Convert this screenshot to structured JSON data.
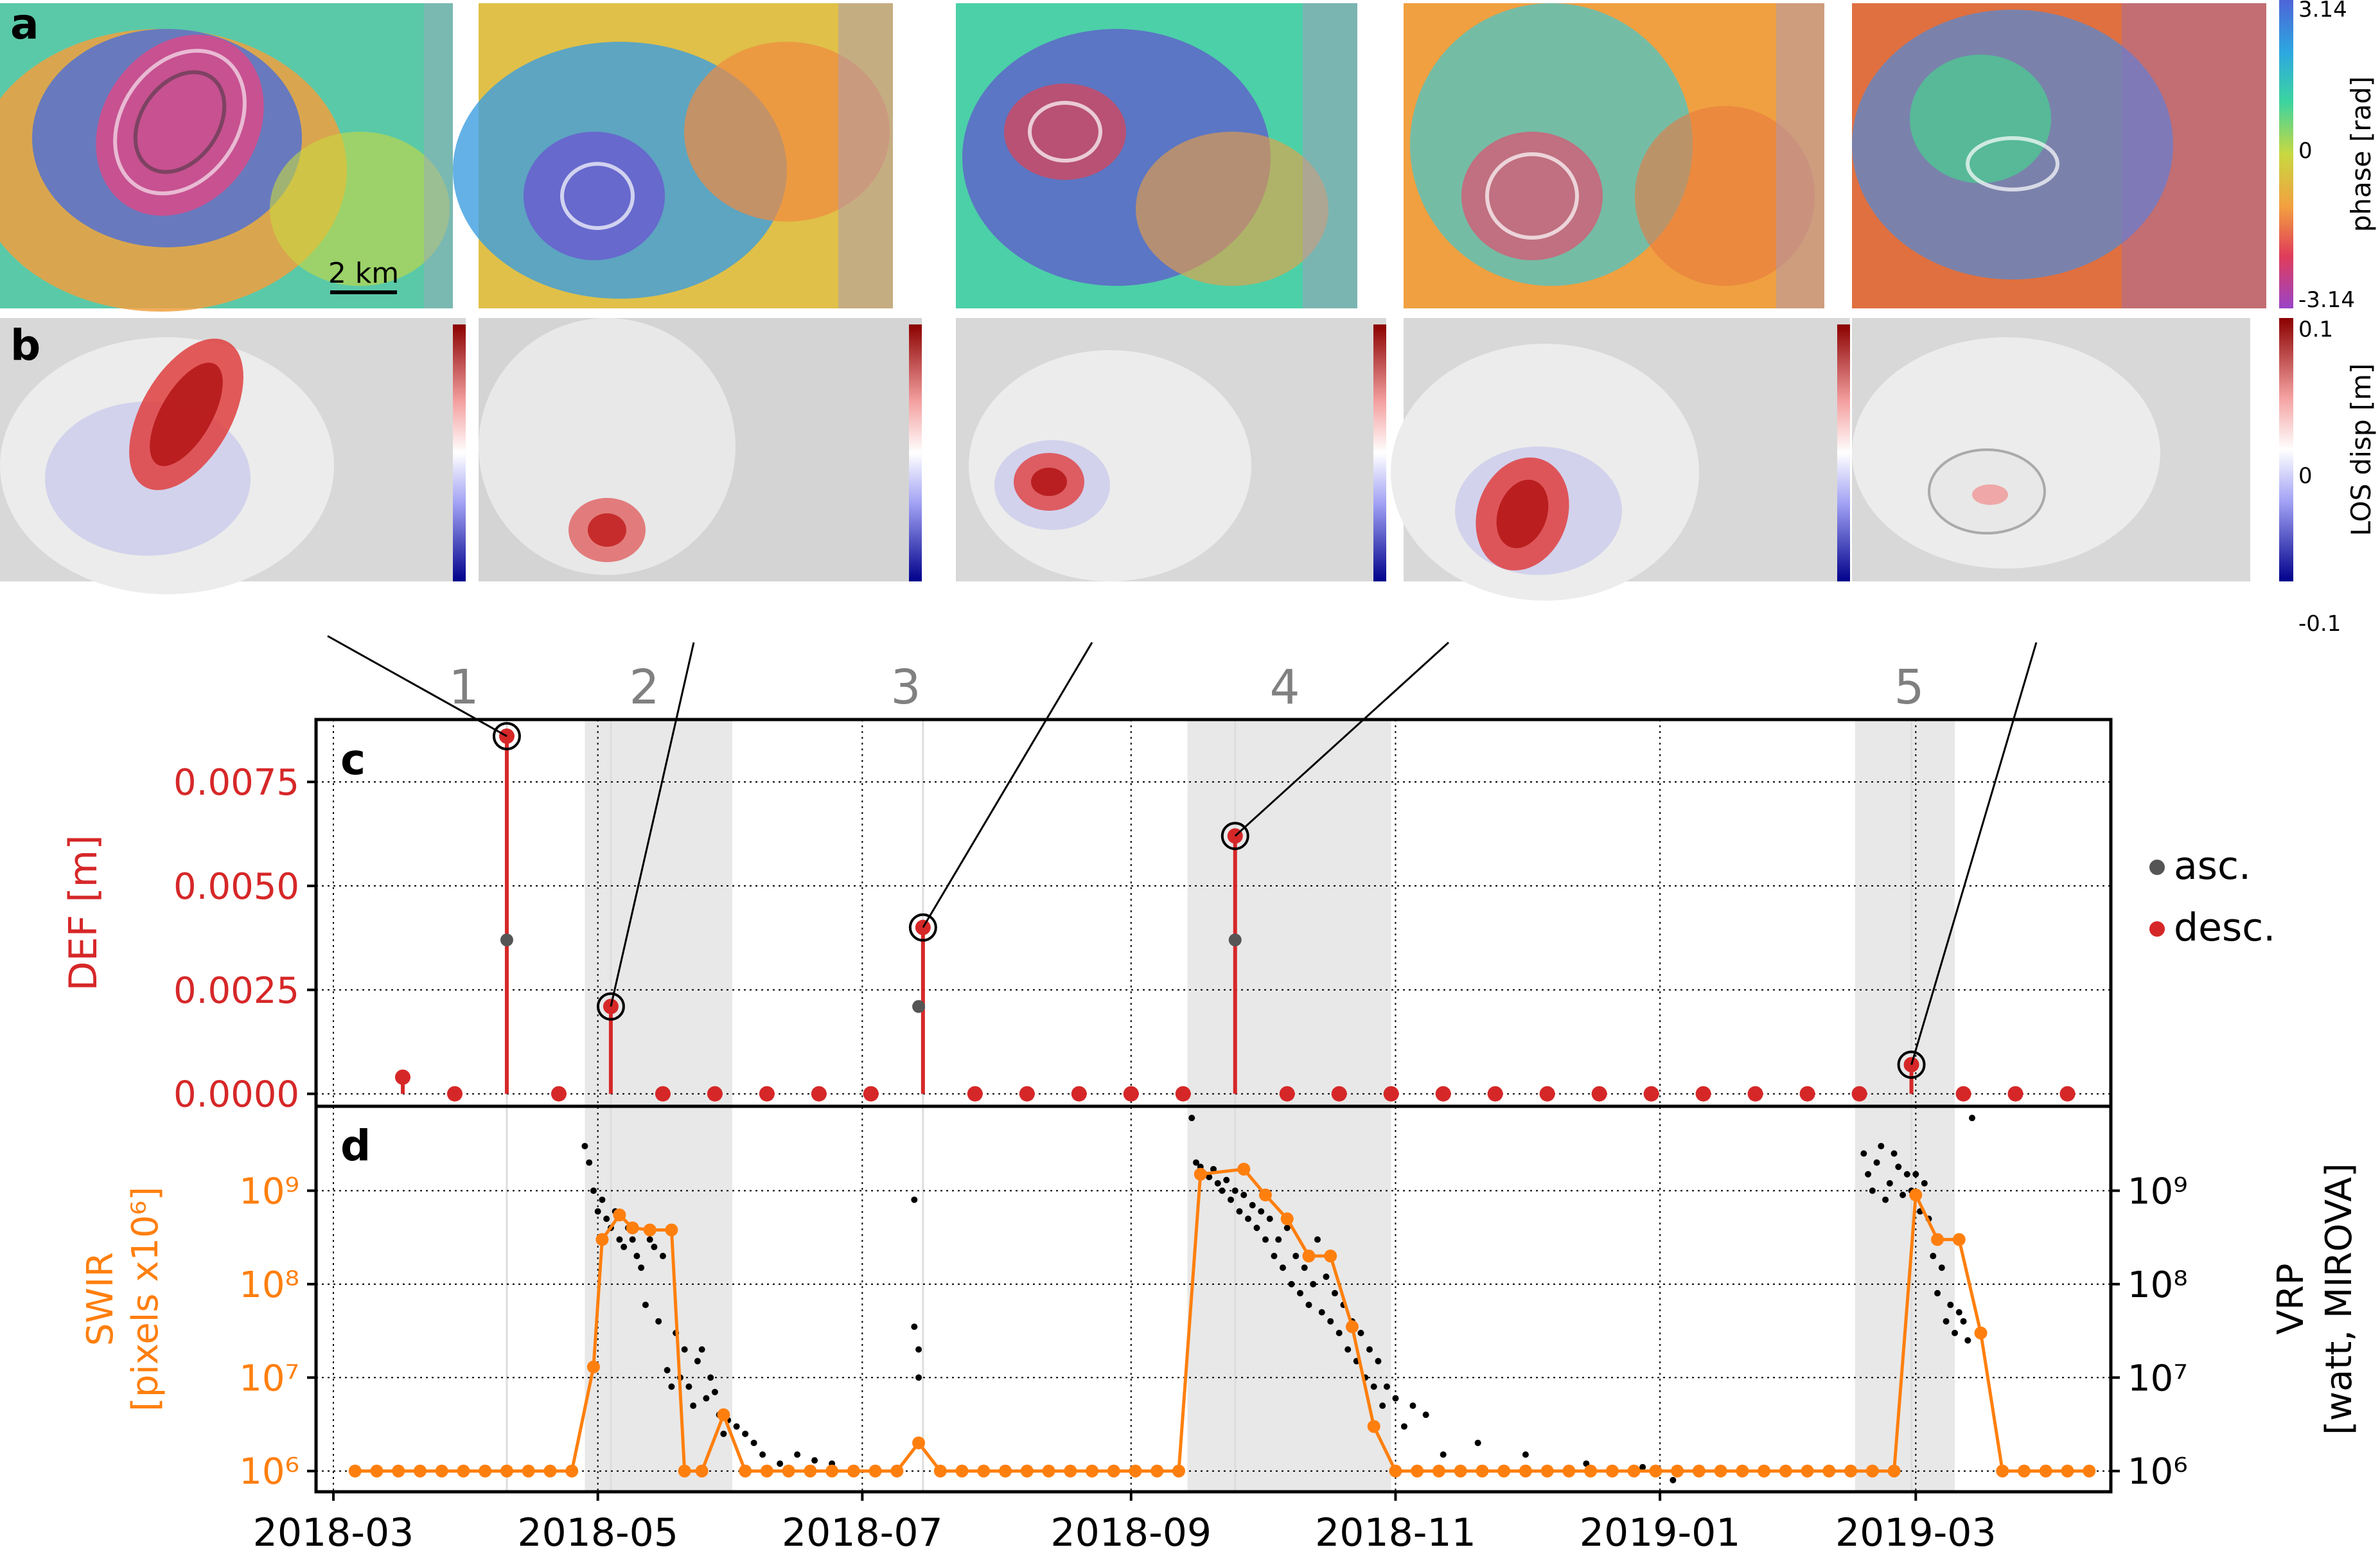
{
  "panel_labels": {
    "a": "a",
    "b": "b",
    "c": "c",
    "d": "d"
  },
  "scale_bar": "2 km",
  "colorbar_a": {
    "top": "3.14",
    "mid": "0",
    "bottom": "-3.14",
    "label": "phase [rad]"
  },
  "colorbar_b": {
    "top": "0.1",
    "mid": "0",
    "bottom": "-0.1",
    "label": "LOS disp [m]"
  },
  "event_numbers": [
    "1",
    "2",
    "3",
    "4",
    "5"
  ],
  "colors": {
    "desc": "#d62728",
    "asc": "#555555",
    "swir": "#ff7f0e",
    "vrp": "#000000",
    "shade": "#e8e8e8"
  },
  "chart_data": [
    {
      "type": "scatter",
      "panel": "c",
      "ylabel": "DEF [m]",
      "y_ticks": [
        "0.0000",
        "0.0025",
        "0.0050",
        "0.0075"
      ],
      "ylim": [
        -0.0003,
        0.009
      ],
      "x_ticks": [
        "2018-03",
        "2018-05",
        "2018-07",
        "2018-09",
        "2018-11",
        "2019-01",
        "2019-03"
      ],
      "xlim": [
        "2018-02-25",
        "2019-04-15"
      ],
      "shaded_periods": [
        [
          "2018-04-28",
          "2018-06-01"
        ],
        [
          "2018-09-14",
          "2018-10-31"
        ],
        [
          "2019-02-15",
          "2019-03-10"
        ]
      ],
      "legend": {
        "position": "right",
        "entries": [
          "asc.",
          "desc."
        ]
      },
      "series": [
        {
          "name": "desc.",
          "color": "#d62728",
          "x": [
            "2018-03-17",
            "2018-03-29",
            "2018-04-10",
            "2018-04-22",
            "2018-05-04",
            "2018-05-16",
            "2018-05-28",
            "2018-06-09",
            "2018-06-21",
            "2018-07-03",
            "2018-07-15",
            "2018-07-27",
            "2018-08-08",
            "2018-08-20",
            "2018-09-01",
            "2018-09-13",
            "2018-09-25",
            "2018-10-07",
            "2018-10-19",
            "2018-10-31",
            "2018-11-12",
            "2018-11-24",
            "2018-12-06",
            "2018-12-18",
            "2018-12-30",
            "2019-01-11",
            "2019-01-23",
            "2019-02-04",
            "2019-02-16",
            "2019-02-28",
            "2019-03-12",
            "2019-03-24",
            "2019-04-05"
          ],
          "values": [
            0.0004,
            0.0,
            0.0086,
            0.0,
            0.0021,
            0.0,
            0.0,
            0.0,
            0.0,
            0.0,
            0.004,
            0.0,
            0.0,
            0.0,
            0.0,
            0.0,
            0.0062,
            0.0,
            0.0,
            0.0,
            0.0,
            0.0,
            0.0,
            0.0,
            0.0,
            0.0,
            0.0,
            0.0,
            0.0,
            0.0007,
            0.0,
            0.0,
            0.0
          ]
        },
        {
          "name": "asc.",
          "color": "#555555",
          "x": [
            "2018-04-10",
            "2018-07-14",
            "2018-09-25"
          ],
          "values": [
            0.0037,
            0.0021,
            0.0037
          ]
        }
      ],
      "highlighted_events": [
        {
          "label": "1",
          "x": "2018-04-10",
          "value": 0.0086
        },
        {
          "label": "2",
          "x": "2018-05-04",
          "value": 0.0021
        },
        {
          "label": "3",
          "x": "2018-07-15",
          "value": 0.004
        },
        {
          "label": "4",
          "x": "2018-09-25",
          "value": 0.0062
        },
        {
          "label": "5",
          "x": "2019-02-28",
          "value": 0.0007
        }
      ]
    },
    {
      "type": "line",
      "panel": "d",
      "ylabel_left": "SWIR",
      "ylabel_left_units": "[pixels x10⁶]",
      "ylabel_right": "VRP",
      "ylabel_right_units": "[watt, MIROVA]",
      "y_scale": "log",
      "y_ticks_left": [
        "10⁶",
        "10⁷",
        "10⁸",
        "10⁹"
      ],
      "y_ticks_right": [
        "10⁶",
        "10⁷",
        "10⁸",
        "10⁹"
      ],
      "ylim": [
        600000,
        8000000000
      ],
      "x_ticks": [
        "2018-03",
        "2018-05",
        "2018-07",
        "2018-09",
        "2018-11",
        "2019-01",
        "2019-03"
      ],
      "xlim": [
        "2018-02-25",
        "2019-04-15"
      ],
      "series": [
        {
          "name": "SWIR",
          "color": "#ff7f0e",
          "x": [
            "2018-03-06",
            "2018-03-11",
            "2018-03-16",
            "2018-03-21",
            "2018-03-26",
            "2018-03-31",
            "2018-04-05",
            "2018-04-10",
            "2018-04-15",
            "2018-04-20",
            "2018-04-25",
            "2018-04-30",
            "2018-05-02",
            "2018-05-06",
            "2018-05-09",
            "2018-05-13",
            "2018-05-18",
            "2018-05-21",
            "2018-05-25",
            "2018-05-30",
            "2018-06-04",
            "2018-06-09",
            "2018-06-14",
            "2018-06-19",
            "2018-06-24",
            "2018-06-29",
            "2018-07-04",
            "2018-07-09",
            "2018-07-14",
            "2018-07-19",
            "2018-07-24",
            "2018-07-29",
            "2018-08-03",
            "2018-08-08",
            "2018-08-13",
            "2018-08-18",
            "2018-08-23",
            "2018-08-28",
            "2018-09-02",
            "2018-09-07",
            "2018-09-12",
            "2018-09-17",
            "2018-09-27",
            "2018-10-02",
            "2018-10-07",
            "2018-10-12",
            "2018-10-17",
            "2018-10-22",
            "2018-10-27",
            "2018-11-01",
            "2018-11-06",
            "2018-11-11",
            "2018-11-16",
            "2018-11-21",
            "2018-11-26",
            "2018-12-01",
            "2018-12-06",
            "2018-12-11",
            "2018-12-16",
            "2018-12-21",
            "2018-12-26",
            "2018-12-31",
            "2019-01-05",
            "2019-01-10",
            "2019-01-15",
            "2019-01-20",
            "2019-01-25",
            "2019-01-30",
            "2019-02-04",
            "2019-02-09",
            "2019-02-14",
            "2019-02-19",
            "2019-02-24",
            "2019-03-01",
            "2019-03-06",
            "2019-03-11",
            "2019-03-16",
            "2019-03-21",
            "2019-03-26",
            "2019-03-31",
            "2019-04-05",
            "2019-04-10"
          ],
          "values": [
            1000000.0,
            1000000.0,
            1000000.0,
            1000000.0,
            1000000.0,
            1000000.0,
            1000000.0,
            1000000.0,
            1000000.0,
            1000000.0,
            1000000.0,
            13000000.0,
            300000000.0,
            550000000.0,
            400000000.0,
            380000000.0,
            380000000.0,
            1000000.0,
            1000000.0,
            4000000.0,
            1000000.0,
            1000000.0,
            1000000.0,
            1000000.0,
            1000000.0,
            1000000.0,
            1000000.0,
            1000000.0,
            2000000.0,
            1000000.0,
            1000000.0,
            1000000.0,
            1000000.0,
            1000000.0,
            1000000.0,
            1000000.0,
            1000000.0,
            1000000.0,
            1000000.0,
            1000000.0,
            1000000.0,
            1500000000.0,
            1700000000.0,
            900000000.0,
            500000000.0,
            200000000.0,
            200000000.0,
            35000000.0,
            3000000.0,
            1000000.0,
            1000000.0,
            1000000.0,
            1000000.0,
            1000000.0,
            1000000.0,
            1000000.0,
            1000000.0,
            1000000.0,
            1000000.0,
            1000000.0,
            1000000.0,
            1000000.0,
            1000000.0,
            1000000.0,
            1000000.0,
            1000000.0,
            1000000.0,
            1000000.0,
            1000000.0,
            1000000.0,
            1000000.0,
            1000000.0,
            1000000.0,
            900000000.0,
            300000000.0,
            300000000.0,
            30000000.0,
            1000000.0,
            1000000.0,
            1000000.0,
            1000000.0,
            1000000.0
          ]
        },
        {
          "name": "VRP",
          "color": "#000000",
          "x": [
            "2018-04-28",
            "2018-04-29",
            "2018-04-30",
            "2018-05-01",
            "2018-05-02",
            "2018-05-03",
            "2018-05-04",
            "2018-05-05",
            "2018-05-06",
            "2018-05-07",
            "2018-05-08",
            "2018-05-09",
            "2018-05-10",
            "2018-05-11",
            "2018-05-12",
            "2018-05-13",
            "2018-05-14",
            "2018-05-15",
            "2018-05-16",
            "2018-05-17",
            "2018-05-18",
            "2018-05-19",
            "2018-05-20",
            "2018-05-21",
            "2018-05-22",
            "2018-05-23",
            "2018-05-24",
            "2018-05-25",
            "2018-05-26",
            "2018-05-27",
            "2018-05-28",
            "2018-05-29",
            "2018-05-30",
            "2018-05-31",
            "2018-06-02",
            "2018-06-04",
            "2018-06-06",
            "2018-06-08",
            "2018-06-12",
            "2018-06-16",
            "2018-06-20",
            "2018-06-24",
            "2018-07-13",
            "2018-07-13",
            "2018-07-14",
            "2018-07-14",
            "2018-09-15",
            "2018-09-16",
            "2018-09-17",
            "2018-09-18",
            "2018-09-19",
            "2018-09-20",
            "2018-09-21",
            "2018-09-22",
            "2018-09-23",
            "2018-09-24",
            "2018-09-25",
            "2018-09-26",
            "2018-09-27",
            "2018-09-28",
            "2018-09-29",
            "2018-09-30",
            "2018-10-01",
            "2018-10-02",
            "2018-10-03",
            "2018-10-04",
            "2018-10-05",
            "2018-10-06",
            "2018-10-07",
            "2018-10-08",
            "2018-10-09",
            "2018-10-10",
            "2018-10-11",
            "2018-10-12",
            "2018-10-13",
            "2018-10-14",
            "2018-10-15",
            "2018-10-16",
            "2018-10-17",
            "2018-10-18",
            "2018-10-19",
            "2018-10-20",
            "2018-10-21",
            "2018-10-22",
            "2018-10-23",
            "2018-10-24",
            "2018-10-25",
            "2018-10-26",
            "2018-10-27",
            "2018-10-28",
            "2018-10-29",
            "2018-10-30",
            "2018-11-01",
            "2018-11-03",
            "2018-11-05",
            "2018-11-08",
            "2018-11-12",
            "2018-11-20",
            "2018-12-01",
            "2018-12-15",
            "2018-12-28",
            "2019-01-04",
            "2019-02-17",
            "2019-02-18",
            "2019-02-19",
            "2019-02-20",
            "2019-02-21",
            "2019-02-22",
            "2019-02-23",
            "2019-02-24",
            "2019-02-25",
            "2019-02-26",
            "2019-02-27",
            "2019-02-28",
            "2019-03-01",
            "2019-03-02",
            "2019-03-03",
            "2019-03-04",
            "2019-03-05",
            "2019-03-06",
            "2019-03-07",
            "2019-03-08",
            "2019-03-09",
            "2019-03-10",
            "2019-03-11",
            "2019-03-12",
            "2019-03-13",
            "2019-03-14"
          ],
          "values": [
            3000000000.0,
            2000000000.0,
            1000000000.0,
            600000000.0,
            800000000.0,
            500000000.0,
            400000000.0,
            600000000.0,
            300000000.0,
            250000000.0,
            400000000.0,
            300000000.0,
            200000000.0,
            150000000.0,
            60000000.0,
            300000000.0,
            250000000.0,
            40000000.0,
            200000000.0,
            12000000.0,
            8000000.0,
            30000000.0,
            10000000.0,
            20000000.0,
            8000000.0,
            5000000.0,
            15000000.0,
            20000000.0,
            6000000.0,
            10000000.0,
            7000000.0,
            4000000.0,
            2500000.0,
            3500000.0,
            3000000.0,
            2500000.0,
            2000000.0,
            1500000.0,
            1200000.0,
            1500000.0,
            1300000.0,
            1200000.0,
            800000000.0,
            35000000.0,
            20000000.0,
            10000000.0,
            6000000000.0,
            2000000000.0,
            1800000000.0,
            1500000000.0,
            1400000000.0,
            1700000000.0,
            1200000000.0,
            1000000000.0,
            1300000000.0,
            800000000.0,
            1000000000.0,
            600000000.0,
            900000000.0,
            500000000.0,
            700000000.0,
            400000000.0,
            600000000.0,
            300000000.0,
            500000000.0,
            200000000.0,
            300000000.0,
            150000000.0,
            400000000.0,
            100000000.0,
            200000000.0,
            80000000.0,
            150000000.0,
            60000000.0,
            100000000.0,
            300000000.0,
            50000000.0,
            120000000.0,
            40000000.0,
            80000000.0,
            30000000.0,
            60000000.0,
            20000000.0,
            40000000.0,
            15000000.0,
            30000000.0,
            10000000.0,
            20000000.0,
            8000000.0,
            15000000.0,
            5000000.0,
            8000000.0,
            6000000.0,
            3000000.0,
            5000000.0,
            4000000.0,
            1500000.0,
            2000000.0,
            1500000.0,
            1200000.0,
            1100000.0,
            800000.0,
            2500000000.0,
            1500000000.0,
            1000000000.0,
            2000000000.0,
            3000000000.0,
            800000000.0,
            1200000000.0,
            2500000000.0,
            1800000000.0,
            900000000.0,
            1500000000.0,
            1000000000.0,
            1500000000.0,
            600000000.0,
            1200000000.0,
            500000000.0,
            200000000.0,
            80000000.0,
            150000000.0,
            40000000.0,
            60000000.0,
            30000000.0,
            50000000.0,
            40000000.0,
            25000000.0,
            6000000000.0
          ]
        }
      ]
    }
  ]
}
